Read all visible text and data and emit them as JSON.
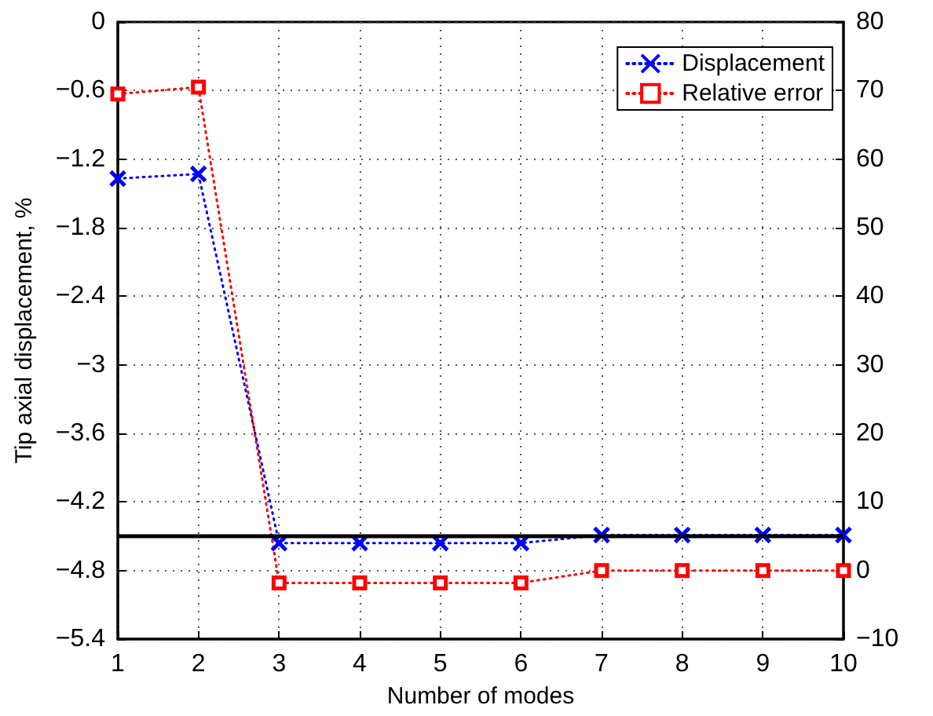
{
  "chart_data": {
    "type": "line",
    "xlabel": "Number of modes",
    "ylabel": "Tip axial displacement, %",
    "x": [
      1,
      2,
      3,
      4,
      5,
      6,
      7,
      8,
      9,
      10
    ],
    "xlim": [
      1,
      10
    ],
    "xticks": [
      1,
      2,
      3,
      4,
      5,
      6,
      7,
      8,
      9,
      10
    ],
    "ylim": [
      -5.4,
      0
    ],
    "yticks": [
      -5.4,
      -4.8,
      -4.2,
      -3.6,
      -3,
      -2.4,
      -1.8,
      -1.2,
      -0.6,
      0
    ],
    "y2lim": [
      -10,
      80
    ],
    "y2ticks": [
      -10,
      0,
      10,
      20,
      30,
      40,
      50,
      60,
      70,
      80
    ],
    "series": [
      {
        "name": "Displacement",
        "color": "#0000ff",
        "marker": "cross",
        "values": [
          -1.37,
          -1.33,
          -4.56,
          -4.56,
          -4.56,
          -4.56,
          -4.49,
          -4.49,
          -4.49,
          -4.49
        ]
      },
      {
        "name": "Relative error",
        "color": "#ff0000",
        "marker": "square",
        "axis": "y2",
        "values": [
          69.5,
          70.5,
          -1.8,
          -1.8,
          -1.8,
          -1.8,
          0,
          0,
          0,
          0
        ]
      }
    ],
    "ref_lines": [
      {
        "axis": "y",
        "value": -4.49,
        "color": "#000000",
        "line_style": "solid"
      }
    ],
    "grid": true,
    "legend": "top right",
    "line_style": "dotted"
  }
}
